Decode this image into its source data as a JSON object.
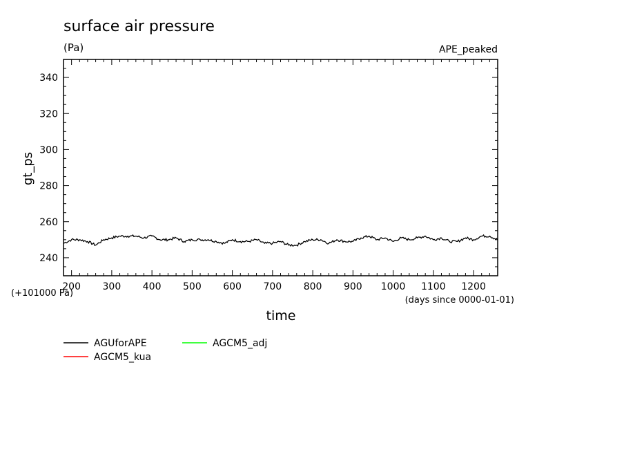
{
  "chart_data": {
    "type": "line",
    "title": "surface air pressure",
    "units": "(Pa)",
    "experiment": "APE_peaked",
    "xlabel": "time",
    "ylabel": "gt_ps",
    "x_units": "(days since 0000-01-01)",
    "y_offset_label": "(+101000 Pa)",
    "xlim": [
      180,
      1260
    ],
    "ylim": [
      230,
      350
    ],
    "x_ticks": [
      200,
      300,
      400,
      500,
      600,
      700,
      800,
      900,
      1000,
      1100,
      1200
    ],
    "y_ticks": [
      240,
      260,
      280,
      300,
      320,
      340
    ],
    "grid": false,
    "legend": [
      {
        "name": "AGUforAPE",
        "color": "#000000"
      },
      {
        "name": "AGCM5_adj",
        "color": "#00ff00"
      },
      {
        "name": "AGCM5_kua",
        "color": "#ff0000"
      }
    ],
    "series": [
      {
        "name": "AGUforAPE",
        "color": "#000000",
        "x": [
          180,
          200,
          220,
          240,
          260,
          280,
          300,
          320,
          340,
          360,
          380,
          400,
          420,
          440,
          460,
          480,
          500,
          520,
          540,
          560,
          580,
          600,
          620,
          640,
          660,
          680,
          700,
          720,
          740,
          760,
          780,
          800,
          820,
          840,
          860,
          880,
          900,
          920,
          940,
          960,
          980,
          1000,
          1020,
          1040,
          1060,
          1080,
          1100,
          1120,
          1140,
          1160,
          1180,
          1200,
          1220,
          1240,
          1260
        ],
        "values": [
          248,
          250,
          250,
          249,
          247,
          250,
          251,
          252,
          252,
          252,
          251,
          252,
          250,
          250,
          251,
          249,
          250,
          250,
          250,
          249,
          248,
          250,
          249,
          249,
          250,
          248,
          248,
          249,
          247,
          247,
          249,
          250,
          250,
          248,
          250,
          249,
          249,
          251,
          252,
          250,
          251,
          249,
          251,
          250,
          251,
          252,
          250,
          251,
          249,
          249,
          251,
          250,
          252,
          252,
          250
        ]
      },
      {
        "name": "AGCM5_adj",
        "color": "#00ff00",
        "x": [],
        "values": []
      },
      {
        "name": "AGCM5_kua",
        "color": "#ff0000",
        "x": [],
        "values": []
      }
    ]
  }
}
